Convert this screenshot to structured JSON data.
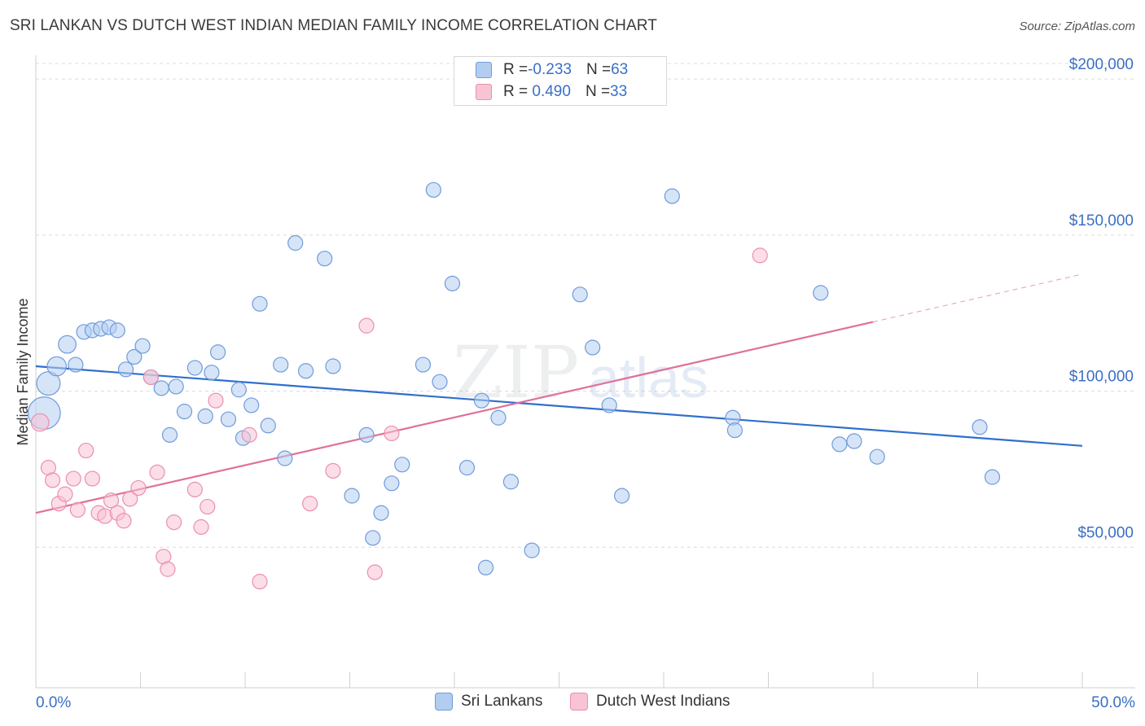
{
  "title": "SRI LANKAN VS DUTCH WEST INDIAN MEDIAN FAMILY INCOME CORRELATION CHART",
  "source": "Source: ZipAtlas.com",
  "watermark": {
    "zip": "ZIP",
    "atlas": "atlas"
  },
  "legend": {
    "rows": [
      {
        "r_label": "R = ",
        "r_value": "-0.233",
        "n_label": "N = ",
        "n_value": "63"
      },
      {
        "r_label": "R = ",
        "r_value": " 0.490",
        "n_label": "N = ",
        "n_value": "33"
      }
    ]
  },
  "colors": {
    "blue_fill": "#b3cdf0",
    "blue_stroke": "#6f9bdc",
    "blue_line": "#2f6fcc",
    "pink_fill": "#f8c3d3",
    "pink_stroke": "#ec8fad",
    "pink_line": "#e0709a",
    "axis_text": "#3a6fc4",
    "grid": "#dcdcdc"
  },
  "chart_data": {
    "type": "scatter",
    "title": "SRI LANKAN VS DUTCH WEST INDIAN MEDIAN FAMILY INCOME CORRELATION CHART",
    "xlabel": "",
    "ylabel": "Median Family Income",
    "xlim": [
      0,
      50
    ],
    "ylim": [
      5000,
      205000
    ],
    "x_tick_labels": [
      "0.0%",
      "50.0%"
    ],
    "y_ticks": [
      50000,
      100000,
      150000,
      200000
    ],
    "y_tick_labels": [
      "$50,000",
      "$100,000",
      "$150,000",
      "$200,000"
    ],
    "grid": true,
    "legend_position": "top-center",
    "series": [
      {
        "name": "Sri Lankans",
        "color": "#b3cdf0",
        "R": -0.233,
        "N": 63,
        "trend": {
          "x": [
            0,
            50
          ],
          "y": [
            108000,
            82500
          ],
          "dashed_from": null
        },
        "points": [
          {
            "x": 0.4,
            "y": 93000,
            "s": 2.2
          },
          {
            "x": 0.6,
            "y": 102500,
            "s": 1.6
          },
          {
            "x": 1.0,
            "y": 108000,
            "s": 1.3
          },
          {
            "x": 1.5,
            "y": 115000,
            "s": 1.2
          },
          {
            "x": 1.9,
            "y": 108500,
            "s": 1
          },
          {
            "x": 2.3,
            "y": 119000,
            "s": 1
          },
          {
            "x": 2.7,
            "y": 119500,
            "s": 1
          },
          {
            "x": 3.1,
            "y": 120000,
            "s": 1
          },
          {
            "x": 3.5,
            "y": 120500,
            "s": 1
          },
          {
            "x": 3.9,
            "y": 119500,
            "s": 1
          },
          {
            "x": 4.3,
            "y": 107000,
            "s": 1
          },
          {
            "x": 4.7,
            "y": 111000,
            "s": 1
          },
          {
            "x": 5.1,
            "y": 114500,
            "s": 1
          },
          {
            "x": 5.5,
            "y": 104500,
            "s": 1
          },
          {
            "x": 6.0,
            "y": 101000,
            "s": 1
          },
          {
            "x": 6.4,
            "y": 86000,
            "s": 1
          },
          {
            "x": 6.7,
            "y": 101500,
            "s": 1
          },
          {
            "x": 7.1,
            "y": 93500,
            "s": 1
          },
          {
            "x": 7.6,
            "y": 107500,
            "s": 1
          },
          {
            "x": 8.1,
            "y": 92000,
            "s": 1
          },
          {
            "x": 8.4,
            "y": 106000,
            "s": 1
          },
          {
            "x": 8.7,
            "y": 112500,
            "s": 1
          },
          {
            "x": 9.2,
            "y": 91000,
            "s": 1
          },
          {
            "x": 9.7,
            "y": 100500,
            "s": 1
          },
          {
            "x": 9.9,
            "y": 85000,
            "s": 1
          },
          {
            "x": 10.3,
            "y": 95500,
            "s": 1
          },
          {
            "x": 10.7,
            "y": 128000,
            "s": 1
          },
          {
            "x": 11.1,
            "y": 89000,
            "s": 1
          },
          {
            "x": 11.7,
            "y": 108500,
            "s": 1
          },
          {
            "x": 11.9,
            "y": 78500,
            "s": 1
          },
          {
            "x": 12.4,
            "y": 147500,
            "s": 1
          },
          {
            "x": 12.9,
            "y": 106500,
            "s": 1
          },
          {
            "x": 13.8,
            "y": 142500,
            "s": 1
          },
          {
            "x": 14.2,
            "y": 108000,
            "s": 1
          },
          {
            "x": 15.1,
            "y": 66500,
            "s": 1
          },
          {
            "x": 15.8,
            "y": 86000,
            "s": 1
          },
          {
            "x": 16.1,
            "y": 53000,
            "s": 1
          },
          {
            "x": 16.5,
            "y": 61000,
            "s": 1
          },
          {
            "x": 17.0,
            "y": 70500,
            "s": 1
          },
          {
            "x": 17.5,
            "y": 76500,
            "s": 1
          },
          {
            "x": 18.5,
            "y": 108500,
            "s": 1
          },
          {
            "x": 19.0,
            "y": 164500,
            "s": 1
          },
          {
            "x": 19.3,
            "y": 103000,
            "s": 1
          },
          {
            "x": 19.9,
            "y": 134500,
            "s": 1
          },
          {
            "x": 20.6,
            "y": 75500,
            "s": 1
          },
          {
            "x": 21.3,
            "y": 97000,
            "s": 1
          },
          {
            "x": 21.5,
            "y": 43500,
            "s": 1
          },
          {
            "x": 22.1,
            "y": 91500,
            "s": 1
          },
          {
            "x": 22.7,
            "y": 71000,
            "s": 1
          },
          {
            "x": 23.7,
            "y": 49000,
            "s": 1
          },
          {
            "x": 26.0,
            "y": 131000,
            "s": 1
          },
          {
            "x": 26.6,
            "y": 114000,
            "s": 1
          },
          {
            "x": 27.4,
            "y": 95500,
            "s": 1
          },
          {
            "x": 28.0,
            "y": 66500,
            "s": 1
          },
          {
            "x": 30.4,
            "y": 162500,
            "s": 1
          },
          {
            "x": 33.3,
            "y": 91500,
            "s": 1
          },
          {
            "x": 33.4,
            "y": 87500,
            "s": 1
          },
          {
            "x": 37.5,
            "y": 131500,
            "s": 1
          },
          {
            "x": 38.4,
            "y": 83000,
            "s": 1
          },
          {
            "x": 39.1,
            "y": 84000,
            "s": 1
          },
          {
            "x": 40.2,
            "y": 79000,
            "s": 1
          },
          {
            "x": 45.1,
            "y": 88500,
            "s": 1
          },
          {
            "x": 45.7,
            "y": 72500,
            "s": 1
          }
        ]
      },
      {
        "name": "Dutch West Indians",
        "color": "#f8c3d3",
        "R": 0.49,
        "N": 33,
        "trend": {
          "x": [
            0,
            50
          ],
          "y": [
            61000,
            137500
          ],
          "dashed_from": 40
        },
        "points": [
          {
            "x": 0.2,
            "y": 90000,
            "s": 1.2
          },
          {
            "x": 0.6,
            "y": 75500,
            "s": 1
          },
          {
            "x": 0.8,
            "y": 71500,
            "s": 1
          },
          {
            "x": 1.1,
            "y": 64000,
            "s": 1
          },
          {
            "x": 1.4,
            "y": 67000,
            "s": 1
          },
          {
            "x": 1.8,
            "y": 72000,
            "s": 1
          },
          {
            "x": 2.0,
            "y": 62000,
            "s": 1
          },
          {
            "x": 2.4,
            "y": 81000,
            "s": 1
          },
          {
            "x": 2.7,
            "y": 72000,
            "s": 1
          },
          {
            "x": 3.0,
            "y": 61000,
            "s": 1
          },
          {
            "x": 3.3,
            "y": 60000,
            "s": 1
          },
          {
            "x": 3.6,
            "y": 65000,
            "s": 1
          },
          {
            "x": 3.9,
            "y": 61000,
            "s": 1
          },
          {
            "x": 4.2,
            "y": 58500,
            "s": 1
          },
          {
            "x": 4.5,
            "y": 65500,
            "s": 1
          },
          {
            "x": 4.9,
            "y": 69000,
            "s": 1
          },
          {
            "x": 5.5,
            "y": 104500,
            "s": 1
          },
          {
            "x": 5.8,
            "y": 74000,
            "s": 1
          },
          {
            "x": 6.1,
            "y": 47000,
            "s": 1
          },
          {
            "x": 6.3,
            "y": 43000,
            "s": 1
          },
          {
            "x": 6.6,
            "y": 58000,
            "s": 1
          },
          {
            "x": 7.6,
            "y": 68500,
            "s": 1
          },
          {
            "x": 7.9,
            "y": 56500,
            "s": 1
          },
          {
            "x": 8.2,
            "y": 63000,
            "s": 1
          },
          {
            "x": 8.6,
            "y": 97000,
            "s": 1
          },
          {
            "x": 10.2,
            "y": 86000,
            "s": 1
          },
          {
            "x": 10.7,
            "y": 39000,
            "s": 1
          },
          {
            "x": 13.1,
            "y": 64000,
            "s": 1
          },
          {
            "x": 14.2,
            "y": 74500,
            "s": 1
          },
          {
            "x": 15.8,
            "y": 121000,
            "s": 1
          },
          {
            "x": 16.2,
            "y": 42000,
            "s": 1
          },
          {
            "x": 17.0,
            "y": 86500,
            "s": 1
          },
          {
            "x": 34.6,
            "y": 143500,
            "s": 1
          }
        ]
      }
    ]
  }
}
